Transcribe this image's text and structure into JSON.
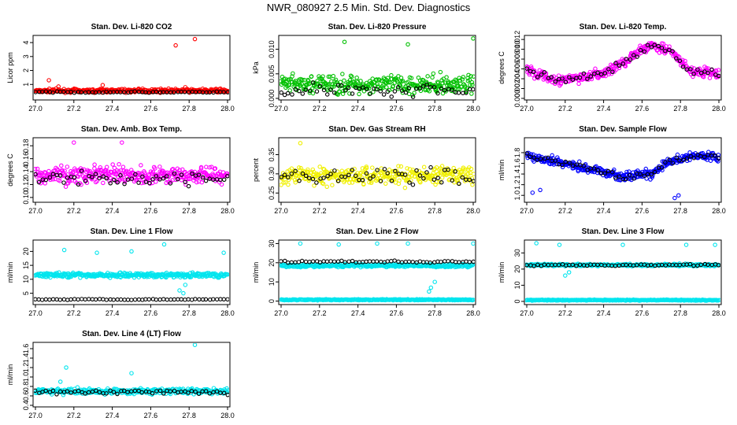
{
  "page": {
    "title": "NWR_080927  2.5 Min. Std. Dev. Diagnostics"
  },
  "chart_data": [
    {
      "type": "scatter",
      "title": "Stan. Dev. Li-820 CO2",
      "ylabel": "Licor ppm",
      "xlim": [
        27.0,
        28.0
      ],
      "ylim": [
        0.0,
        4.4
      ],
      "xticks": [
        "27.0",
        "27.2",
        "27.4",
        "27.6",
        "27.8",
        "28.0"
      ],
      "yticks": [
        "1",
        "2",
        "3",
        "4"
      ],
      "ytick_values": [
        1,
        2,
        3,
        4
      ],
      "series": [
        {
          "name": "colored",
          "color": "#ff0000",
          "center": 0.55,
          "spread": 0.18,
          "outliers": [
            [
              27.07,
              1.3
            ],
            [
              27.12,
              0.85
            ],
            [
              27.35,
              0.95
            ],
            [
              27.73,
              3.8
            ],
            [
              27.83,
              4.25
            ],
            [
              27.78,
              0.8
            ]
          ]
        },
        {
          "name": "black",
          "color": "#000000",
          "center": 0.45,
          "spread": 0.06,
          "outliers": []
        }
      ]
    },
    {
      "type": "scatter",
      "title": "Stan. Dev. Li-820 Pressure",
      "ylabel": "kPa",
      "xlim": [
        27.0,
        28.0
      ],
      "ylim": [
        0.0,
        0.0125
      ],
      "xticks": [
        "27.0",
        "27.2",
        "27.4",
        "27.6",
        "27.8",
        "28.0"
      ],
      "yticks": [
        "0.000",
        "0.005",
        "0.010"
      ],
      "ytick_values": [
        0.0,
        0.005,
        0.01
      ],
      "series": [
        {
          "name": "colored",
          "color": "#00c000",
          "center": 0.0028,
          "spread": 0.0028,
          "outliers": [
            [
              27.33,
              0.0115
            ],
            [
              27.66,
              0.011
            ],
            [
              28.0,
              0.0122
            ]
          ]
        },
        {
          "name": "black",
          "color": "#000000",
          "center": 0.0018,
          "spread": 0.0018,
          "outliers": []
        }
      ]
    },
    {
      "type": "scatter",
      "title": "Stan. Dev. Li-820 Temp.",
      "ylabel": "degrees C",
      "xlim": [
        27.0,
        28.0
      ],
      "ylim": [
        0.0,
        0.0125
      ],
      "xticks": [
        "27.0",
        "27.2",
        "27.4",
        "27.6",
        "27.8",
        "28.0"
      ],
      "yticks": [
        "0.000",
        "0.002",
        "0.004",
        "0.006",
        "0.008",
        "0.010",
        "0.012"
      ],
      "ytick_values": [
        0.0,
        0.002,
        0.004,
        0.006,
        0.008,
        0.01,
        0.012
      ],
      "series": [
        {
          "name": "colored",
          "color": "#ff00ff",
          "trend": [
            [
              27.0,
              0.006
            ],
            [
              27.15,
              0.0035
            ],
            [
              27.4,
              0.005
            ],
            [
              27.55,
              0.0085
            ],
            [
              27.65,
              0.011
            ],
            [
              27.75,
              0.0095
            ],
            [
              27.85,
              0.0055
            ],
            [
              28.0,
              0.005
            ]
          ],
          "spread": 0.0015,
          "outliers": []
        },
        {
          "name": "black",
          "color": "#000000",
          "trend": [
            [
              27.0,
              0.006
            ],
            [
              27.15,
              0.0035
            ],
            [
              27.4,
              0.005
            ],
            [
              27.55,
              0.0085
            ],
            [
              27.65,
              0.011
            ],
            [
              27.75,
              0.0095
            ],
            [
              27.85,
              0.0055
            ],
            [
              28.0,
              0.005
            ]
          ],
          "spread": 0.001,
          "outliers": []
        }
      ]
    },
    {
      "type": "scatter",
      "title": "Stan. Dev. Amb. Box Temp.",
      "ylabel": "degrees C",
      "xlim": [
        27.0,
        28.0
      ],
      "ylim": [
        0.095,
        0.19
      ],
      "xticks": [
        "27.0",
        "27.2",
        "27.4",
        "27.6",
        "27.8",
        "28.0"
      ],
      "yticks": [
        "0.10",
        "0.12",
        "0.14",
        "0.16",
        "0.18"
      ],
      "ytick_values": [
        0.1,
        0.12,
        0.14,
        0.16,
        0.18
      ],
      "series": [
        {
          "name": "colored",
          "color": "#ff00ff",
          "center": 0.135,
          "spread": 0.02,
          "outliers": [
            [
              27.2,
              0.185
            ],
            [
              27.45,
              0.185
            ]
          ]
        },
        {
          "name": "black",
          "color": "#000000",
          "center": 0.13,
          "spread": 0.015,
          "outliers": []
        }
      ]
    },
    {
      "type": "scatter",
      "title": "Stan. Dev. Gas Stream RH",
      "ylabel": "percent",
      "xlim": [
        27.0,
        28.0
      ],
      "ylim": [
        0.23,
        0.39
      ],
      "xticks": [
        "27.0",
        "27.2",
        "27.4",
        "27.6",
        "27.8",
        "28.0"
      ],
      "yticks": [
        "0.25",
        "0.30",
        "0.35"
      ],
      "ytick_values": [
        0.25,
        0.3,
        0.35
      ],
      "series": [
        {
          "name": "colored",
          "color": "#f0f000",
          "center": 0.295,
          "spread": 0.035,
          "outliers": [
            [
              27.1,
              0.38
            ]
          ]
        },
        {
          "name": "black",
          "color": "#000000",
          "center": 0.295,
          "spread": 0.03,
          "outliers": []
        }
      ]
    },
    {
      "type": "scatter",
      "title": "Stan. Dev. Sample Flow",
      "ylabel": "ml/min",
      "xlim": [
        27.0,
        28.0
      ],
      "ylim": [
        0.9,
        2.05
      ],
      "xticks": [
        "27.0",
        "27.2",
        "27.4",
        "27.6",
        "27.8",
        "28.0"
      ],
      "yticks": [
        "1.0",
        "1.2",
        "1.4",
        "1.6",
        "1.8"
      ],
      "ytick_values": [
        1.0,
        1.2,
        1.4,
        1.6,
        1.8
      ],
      "series": [
        {
          "name": "colored",
          "color": "#0000ff",
          "trend": [
            [
              27.0,
              1.75
            ],
            [
              27.2,
              1.6
            ],
            [
              27.5,
              1.35
            ],
            [
              27.65,
              1.4
            ],
            [
              27.75,
              1.65
            ],
            [
              27.9,
              1.75
            ],
            [
              28.0,
              1.7
            ]
          ],
          "spread": 0.12,
          "outliers": [
            [
              27.03,
              1.05
            ],
            [
              27.07,
              1.1
            ],
            [
              27.77,
              0.95
            ],
            [
              27.79,
              1.0
            ]
          ]
        },
        {
          "name": "black",
          "color": "#000000",
          "trend": [
            [
              27.0,
              1.75
            ],
            [
              27.2,
              1.6
            ],
            [
              27.5,
              1.35
            ],
            [
              27.65,
              1.4
            ],
            [
              27.75,
              1.65
            ],
            [
              27.9,
              1.75
            ],
            [
              28.0,
              1.7
            ]
          ],
          "spread": 0.08,
          "outliers": []
        }
      ]
    },
    {
      "type": "scatter",
      "title": "Stan. Dev. Line 1 Flow",
      "ylabel": "ml/min",
      "xlim": [
        27.0,
        28.0
      ],
      "ylim": [
        1.5,
        23.5
      ],
      "xticks": [
        "27.0",
        "27.2",
        "27.4",
        "27.6",
        "27.8",
        "28.0"
      ],
      "yticks": [
        "5",
        "10",
        "15",
        "20"
      ],
      "ytick_values": [
        5,
        10,
        15,
        20
      ],
      "series": [
        {
          "name": "colored",
          "color": "#00e5ee",
          "center": 11.5,
          "spread": 1.2,
          "outliers": [
            [
              27.15,
              20.5
            ],
            [
              27.32,
              19.5
            ],
            [
              27.5,
              20
            ],
            [
              27.67,
              22.5
            ],
            [
              27.75,
              6
            ],
            [
              27.77,
              5
            ],
            [
              27.78,
              8
            ],
            [
              27.98,
              19.5
            ]
          ]
        },
        {
          "name": "black",
          "color": "#000000",
          "center": 2.8,
          "spread": 0.25,
          "outliers": []
        }
      ]
    },
    {
      "type": "scatter",
      "title": "Stan. Dev. Line 2 Flow",
      "ylabel": "ml/min",
      "xlim": [
        27.0,
        28.0
      ],
      "ylim": [
        -1.0,
        31.0
      ],
      "xticks": [
        "27.0",
        "27.2",
        "27.4",
        "27.6",
        "27.8",
        "28.0"
      ],
      "yticks": [
        "0",
        "10",
        "20",
        "30"
      ],
      "ytick_values": [
        0,
        10,
        20,
        30
      ],
      "series": [
        {
          "name": "colored",
          "color": "#00e5ee",
          "center": 18.5,
          "spread": 1.2,
          "outliers": [
            [
              27.1,
              30
            ],
            [
              27.3,
              29.5
            ],
            [
              27.5,
              30
            ],
            [
              27.66,
              30
            ],
            [
              27.77,
              5
            ],
            [
              27.78,
              7
            ],
            [
              27.8,
              10
            ],
            [
              28.0,
              30
            ]
          ]
        },
        {
          "name": "colored_low",
          "color": "#00e5ee",
          "center": 0.7,
          "spread": 0.4,
          "outliers": []
        },
        {
          "name": "black",
          "color": "#000000",
          "center": 20.5,
          "spread": 0.8,
          "outliers": []
        }
      ]
    },
    {
      "type": "scatter",
      "title": "Stan. Dev. Line 3 Flow",
      "ylabel": "ml/min",
      "xlim": [
        27.0,
        28.0
      ],
      "ylim": [
        -1.0,
        37.0
      ],
      "xticks": [
        "27.0",
        "27.2",
        "27.4",
        "27.6",
        "27.8",
        "28.0"
      ],
      "yticks": [
        "0",
        "10",
        "20",
        "30"
      ],
      "ytick_values": [
        0,
        10,
        20,
        30
      ],
      "series": [
        {
          "name": "colored",
          "color": "#00e5ee",
          "center": 22.5,
          "spread": 1.0,
          "outliers": [
            [
              27.05,
              36
            ],
            [
              27.17,
              35
            ],
            [
              27.5,
              35
            ],
            [
              27.83,
              35
            ],
            [
              27.98,
              35
            ],
            [
              27.2,
              16
            ],
            [
              27.22,
              18
            ]
          ]
        },
        {
          "name": "colored_low",
          "color": "#00e5ee",
          "center": 0.8,
          "spread": 0.4,
          "outliers": []
        },
        {
          "name": "black",
          "color": "#000000",
          "center": 22.5,
          "spread": 0.9,
          "outliers": []
        }
      ]
    },
    {
      "type": "scatter",
      "title": "Stan. Dev. Line 4 (LT) Flow",
      "ylabel": "ml/min",
      "xlim": [
        27.0,
        28.0
      ],
      "ylim": [
        0.4,
        1.7
      ],
      "xticks": [
        "27.0",
        "27.2",
        "27.4",
        "27.6",
        "27.8",
        "28.0"
      ],
      "yticks": [
        "0.4",
        "0.6",
        "0.8",
        "1.0",
        "1.2",
        "1.4",
        "1.6"
      ],
      "ytick_values": [
        0.4,
        0.6,
        0.8,
        1.0,
        1.2,
        1.4,
        1.6
      ],
      "series": [
        {
          "name": "colored",
          "color": "#00e5ee",
          "center": 0.7,
          "spread": 0.09,
          "outliers": [
            [
              27.16,
              1.2
            ],
            [
              27.5,
              1.08
            ],
            [
              27.83,
              1.68
            ],
            [
              27.13,
              0.9
            ]
          ]
        },
        {
          "name": "black",
          "color": "#000000",
          "center": 0.68,
          "spread": 0.07,
          "outliers": []
        }
      ]
    }
  ]
}
